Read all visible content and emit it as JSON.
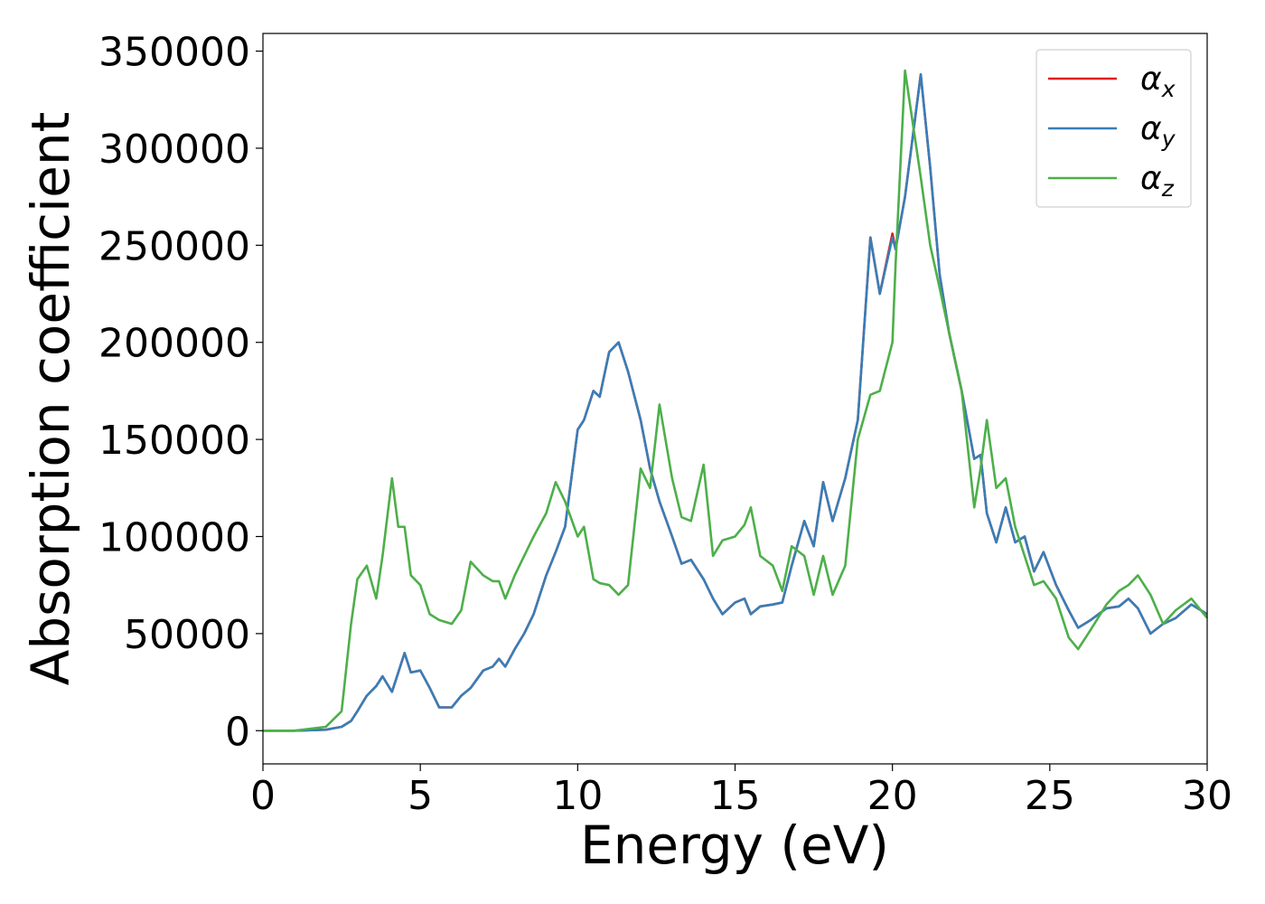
{
  "chart_data": {
    "type": "line",
    "xlabel": "Energy (eV)",
    "ylabel": "Absorption coefficient",
    "x": [
      0,
      1,
      2,
      2.5,
      2.8,
      3.0,
      3.3,
      3.6,
      3.8,
      4.1,
      4.3,
      4.5,
      4.7,
      5.0,
      5.3,
      5.6,
      6.0,
      6.3,
      6.6,
      7.0,
      7.3,
      7.5,
      7.7,
      8.0,
      8.3,
      8.6,
      9.0,
      9.3,
      9.6,
      10.0,
      10.2,
      10.5,
      10.7,
      11.0,
      11.3,
      11.6,
      12.0,
      12.3,
      12.6,
      13.0,
      13.3,
      13.6,
      14.0,
      14.3,
      14.6,
      15.0,
      15.3,
      15.5,
      15.8,
      16.2,
      16.5,
      16.8,
      17.2,
      17.5,
      17.8,
      18.1,
      18.5,
      18.9,
      19.3,
      19.6,
      20.0,
      20.1,
      20.4,
      20.9,
      21.2,
      21.5,
      21.8,
      22.2,
      22.6,
      22.8,
      23.0,
      23.3,
      23.6,
      23.9,
      24.2,
      24.5,
      24.8,
      25.2,
      25.6,
      25.9,
      26.3,
      26.8,
      27.2,
      27.5,
      27.8,
      28.2,
      28.6,
      29.0,
      29.5,
      30
    ],
    "series": [
      {
        "name": "α_x",
        "color": "#e41a1c",
        "values": [
          0,
          0,
          500,
          2000,
          5000,
          10000,
          18000,
          23000,
          28000,
          20000,
          30000,
          40000,
          30000,
          31000,
          22000,
          12000,
          12000,
          18000,
          22000,
          31000,
          33000,
          37000,
          33000,
          42000,
          50000,
          60000,
          80000,
          92000,
          105000,
          155000,
          160000,
          175000,
          172000,
          195000,
          200000,
          185000,
          160000,
          135000,
          118000,
          100000,
          86000,
          88000,
          78000,
          68000,
          60000,
          66000,
          68000,
          60000,
          64000,
          65000,
          66000,
          85000,
          108000,
          95000,
          128000,
          108000,
          130000,
          160000,
          254000,
          225000,
          256000,
          248000,
          275000,
          338000,
          290000,
          235000,
          205000,
          175000,
          140000,
          142000,
          112000,
          97000,
          115000,
          97000,
          100000,
          82000,
          92000,
          75000,
          62000,
          53000,
          57000,
          63000,
          64000,
          68000,
          63000,
          50000,
          55000,
          58000,
          65000,
          60000
        ]
      },
      {
        "name": "α_y",
        "color": "#377eb8",
        "values": [
          0,
          0,
          500,
          2000,
          5000,
          10000,
          18000,
          23000,
          28000,
          20000,
          30000,
          40000,
          30000,
          31000,
          22000,
          12000,
          12000,
          18000,
          22000,
          31000,
          33000,
          37000,
          33000,
          42000,
          50000,
          60000,
          80000,
          92000,
          105000,
          155000,
          160000,
          175000,
          172000,
          195000,
          200000,
          185000,
          160000,
          135000,
          118000,
          100000,
          86000,
          88000,
          78000,
          68000,
          60000,
          66000,
          68000,
          60000,
          64000,
          65000,
          66000,
          85000,
          108000,
          95000,
          128000,
          108000,
          130000,
          160000,
          254000,
          225000,
          254000,
          248000,
          275000,
          338000,
          290000,
          235000,
          205000,
          175000,
          140000,
          142000,
          112000,
          97000,
          115000,
          97000,
          100000,
          82000,
          92000,
          75000,
          62000,
          53000,
          57000,
          63000,
          64000,
          68000,
          63000,
          50000,
          55000,
          58000,
          65000,
          60000
        ]
      },
      {
        "name": "α_z",
        "color": "#4daf4a",
        "values": [
          0,
          0,
          2000,
          10000,
          55000,
          78000,
          85000,
          68000,
          90000,
          130000,
          105000,
          105000,
          80000,
          75000,
          60000,
          57000,
          55000,
          62000,
          87000,
          80000,
          77000,
          77000,
          68000,
          80000,
          90000,
          100000,
          112000,
          128000,
          118000,
          100000,
          105000,
          78000,
          76000,
          75000,
          70000,
          75000,
          135000,
          125000,
          168000,
          130000,
          110000,
          108000,
          137000,
          90000,
          98000,
          100000,
          106000,
          115000,
          90000,
          85000,
          72000,
          95000,
          90000,
          70000,
          90000,
          70000,
          85000,
          150000,
          173000,
          175000,
          200000,
          240000,
          340000,
          285000,
          250000,
          228000,
          205000,
          175000,
          115000,
          135000,
          160000,
          125000,
          130000,
          105000,
          90000,
          75000,
          77000,
          68000,
          48000,
          42000,
          52000,
          65000,
          72000,
          75000,
          80000,
          70000,
          55000,
          62000,
          68000,
          58000
        ]
      }
    ],
    "xlim": [
      0,
      30
    ],
    "xticks": [
      0,
      5,
      10,
      15,
      20,
      25,
      30
    ],
    "ylim": [
      -17100,
      359100
    ],
    "yticks": [
      0,
      50000,
      100000,
      150000,
      200000,
      250000,
      300000,
      350000
    ],
    "legend": "upper right"
  }
}
